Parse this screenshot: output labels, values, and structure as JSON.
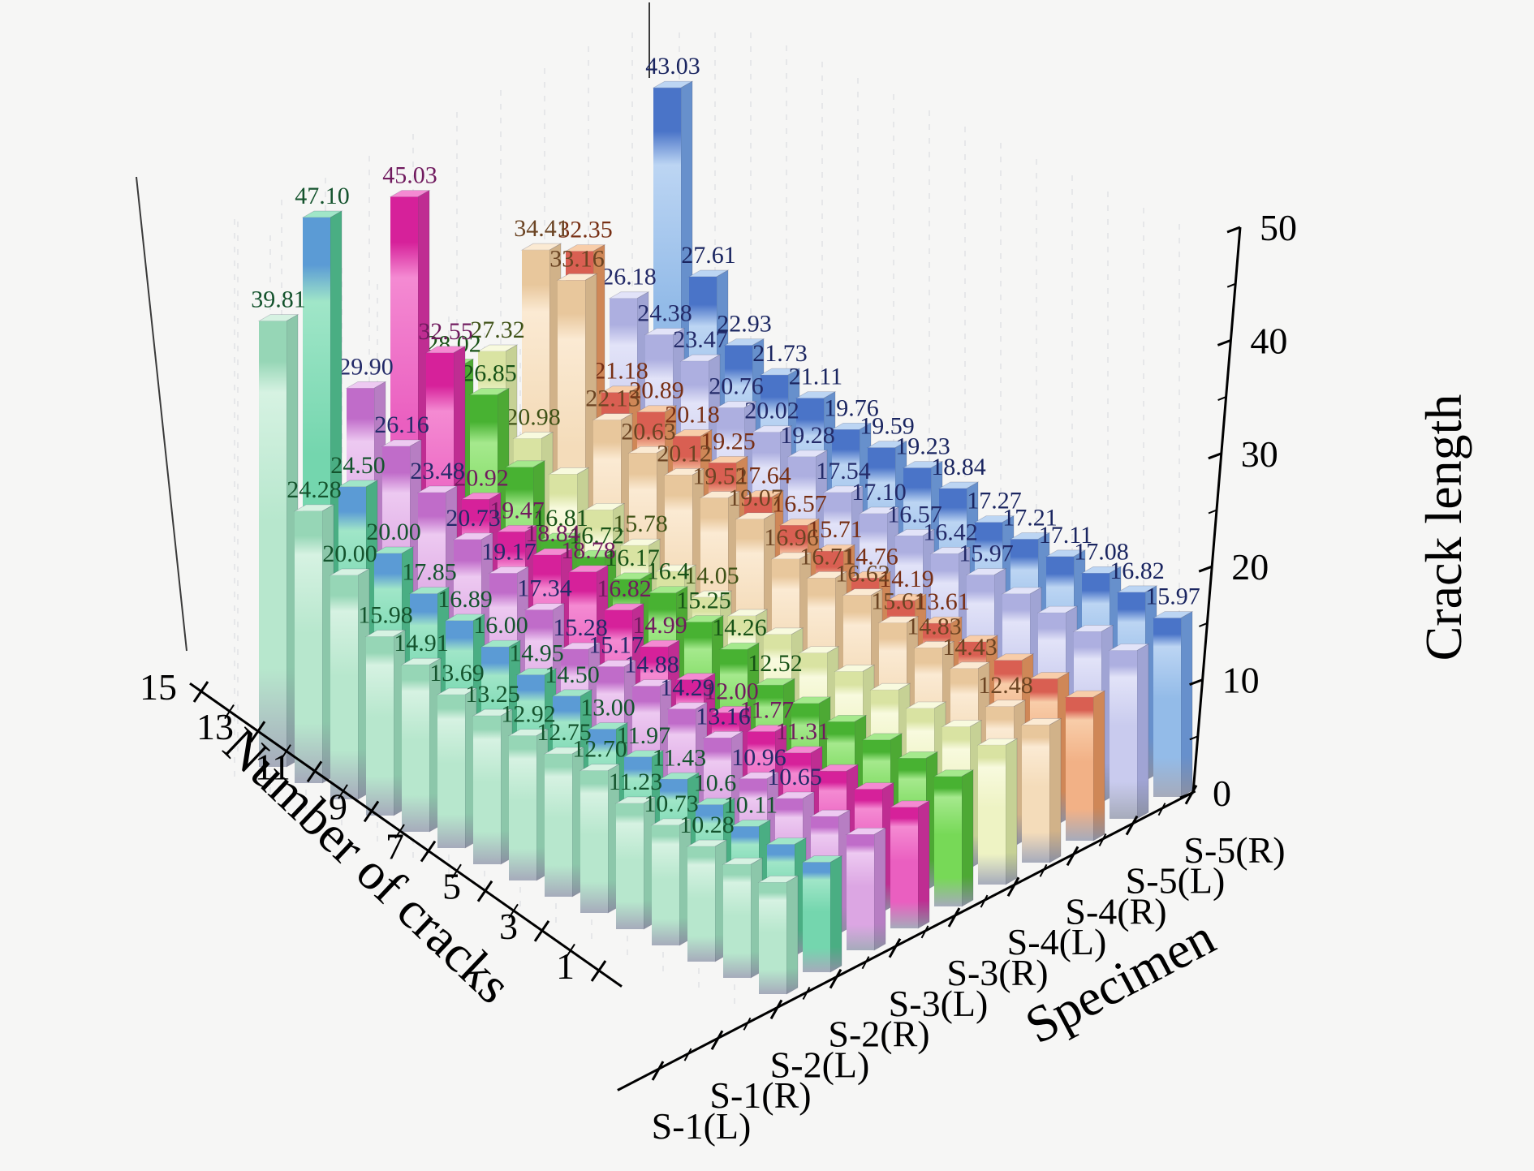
{
  "background_color": "#f6f6f5",
  "chart_data": {
    "type": "bar",
    "projection": "3d-bars",
    "title": "",
    "axes": {
      "z": {
        "label": "Crack length",
        "ticks": [
          0,
          10,
          20,
          30,
          40,
          50
        ],
        "lim": [
          0,
          50
        ],
        "minor_step": 5
      },
      "depth": {
        "label": "Number of cracks",
        "ticks": [
          1,
          3,
          5,
          7,
          9,
          11,
          13,
          15
        ],
        "lim": [
          1,
          15
        ]
      },
      "x": {
        "label": "Specimen",
        "categories": [
          "S-1(L)",
          "S-1(R)",
          "S-2(L)",
          "S-2(R)",
          "S-3(L)",
          "S-3(R)",
          "S-4(L)",
          "S-4(R)",
          "S-5(L)",
          "S-5(R)"
        ]
      }
    },
    "grid": "faint dashed vertical lines on back walls",
    "value_label_note": "labels ordered from number-of-cracks 15 (back) to 1 (front); null = bar present but label hidden in screenshot",
    "series": [
      {
        "name": "S-1(L)",
        "colors": {
          "main": "#b7e7cd",
          "light": "#d6f2e2",
          "dark": "#8cc7aa",
          "cap": "#96d6b6",
          "base": "#a6abbb",
          "text": "#14532d"
        },
        "values_back_to_front": [
          "39.81",
          "24.28",
          "20.00",
          "15.98",
          "14.91",
          "13.69",
          "13.25",
          "12.92",
          "12.75",
          "12.70",
          "11.23",
          "10.73",
          "10.28",
          null,
          null
        ]
      },
      {
        "name": "S-1(R)",
        "colors": {
          "main": "#74d6ae",
          "light": "#a0e6c8",
          "dark": "#4aae83",
          "cap": "#5b9bd5",
          "base": "#a6abbb",
          "text": "#14532d"
        },
        "values_back_to_front": [
          "47.10",
          "24.50",
          "20.00",
          "17.85",
          "16.89",
          "16.00",
          "14.95",
          "14.50",
          "13.00",
          "11.97",
          "11.43",
          "10.6",
          "10.11",
          null,
          null
        ]
      },
      {
        "name": "S-2(L)",
        "colors": {
          "main": "#dca6e3",
          "light": "#edc9f1",
          "dark": "#b77ec3",
          "cap": "#c06cc9",
          "base": "#a6abbb",
          "text": "#232a68"
        },
        "values_back_to_front": [
          "29.90",
          "26.16",
          "23.48",
          "20.73",
          "19.17",
          "17.34",
          "15.28",
          "15.17",
          "14.88",
          "14.29",
          "13.16",
          "10.96",
          "10.65",
          null,
          null
        ]
      },
      {
        "name": "S-2(R)",
        "colors": {
          "main": "#ea5fc0",
          "light": "#f48ad2",
          "dark": "#bf2d92",
          "cap": "#d6219a",
          "base": "#a6abbb",
          "text": "#701a5e"
        },
        "values_back_to_front": [
          "45.03",
          "32.55",
          "20.92",
          "19.47",
          "18.84",
          "18.78",
          "16.82",
          "14.99",
          null,
          "12.00",
          "11.77",
          "11.31",
          null,
          null,
          null
        ]
      },
      {
        "name": "S-3(L)",
        "colors": {
          "main": "#77d957",
          "light": "#a5e98d",
          "dark": "#4da934",
          "cap": "#48b232",
          "base": "#a6abbb",
          "text": "#175216"
        },
        "values_back_to_front": [
          "28.02",
          "26.85",
          null,
          "16.81",
          "16.72",
          "16.17",
          "16.4",
          "15.25",
          "14.26",
          "12.52",
          null,
          null,
          null,
          null,
          null
        ]
      },
      {
        "name": "S-3(R)",
        "colors": {
          "main": "#eef3c4",
          "light": "#f8fade",
          "dark": "#c6d195",
          "cap": "#d9e3a2",
          "base": "#a6abbb",
          "text": "#3f5217"
        },
        "values_back_to_front": [
          "27.32",
          "20.98",
          null,
          null,
          "15.78",
          null,
          "14.05",
          null,
          null,
          null,
          null,
          null,
          null,
          null,
          null
        ]
      },
      {
        "name": "S-4(L)",
        "colors": {
          "main": "#f4dcba",
          "light": "#fbead3",
          "dark": "#d1b289",
          "cap": "#e8c79c",
          "base": "#a6abbb",
          "text": "#6b4423"
        },
        "values_back_to_front": [
          "34.41",
          "33.16",
          "22.13",
          "20.63",
          "20.12",
          "19.52",
          "19.07",
          "16.96",
          "16.71",
          "16.62",
          "15.61",
          "14.83",
          "14.43",
          "12.48",
          null
        ]
      },
      {
        "name": "S-4(R)",
        "colors": {
          "main": "#f2b186",
          "light": "#f8cda9",
          "dark": "#cf8757",
          "cap": "#d95f52",
          "base": "#a6abbb",
          "text": "#772f14"
        },
        "values_back_to_front": [
          "32.35",
          "21.18",
          "20.89",
          "20.18",
          "19.25",
          "17.64",
          "16.57",
          "15.71",
          "14.76",
          "14.19",
          "13.61",
          null,
          null,
          null,
          null
        ]
      },
      {
        "name": "S-5(L)",
        "colors": {
          "main": "#c9cbee",
          "light": "#e2e3f8",
          "dark": "#a0a4d4",
          "cap": "#adaFe0",
          "base": "#a6abbb",
          "text": "#232a68"
        },
        "values_back_to_front": [
          "26.18",
          "24.38",
          "23.47",
          "20.76",
          "20.02",
          "19.28",
          "17.54",
          "17.10",
          "16.57",
          "16.42",
          "15.97",
          null,
          null,
          null,
          null
        ]
      },
      {
        "name": "S-5(R)",
        "colors": {
          "main": "#93bbe8",
          "light": "#bcd5f3",
          "dark": "#6790cc",
          "cap": "#4a74c8",
          "base": "#a6abbb",
          "text": "#1a2560"
        },
        "values_back_to_front": [
          "43.03",
          "27.61",
          "22.93",
          "21.73",
          "21.11",
          "19.76",
          "19.59",
          "19.23",
          "18.84",
          "17.27",
          "17.21",
          "17.11",
          "17.08",
          "16.82",
          "15.97"
        ]
      }
    ]
  }
}
